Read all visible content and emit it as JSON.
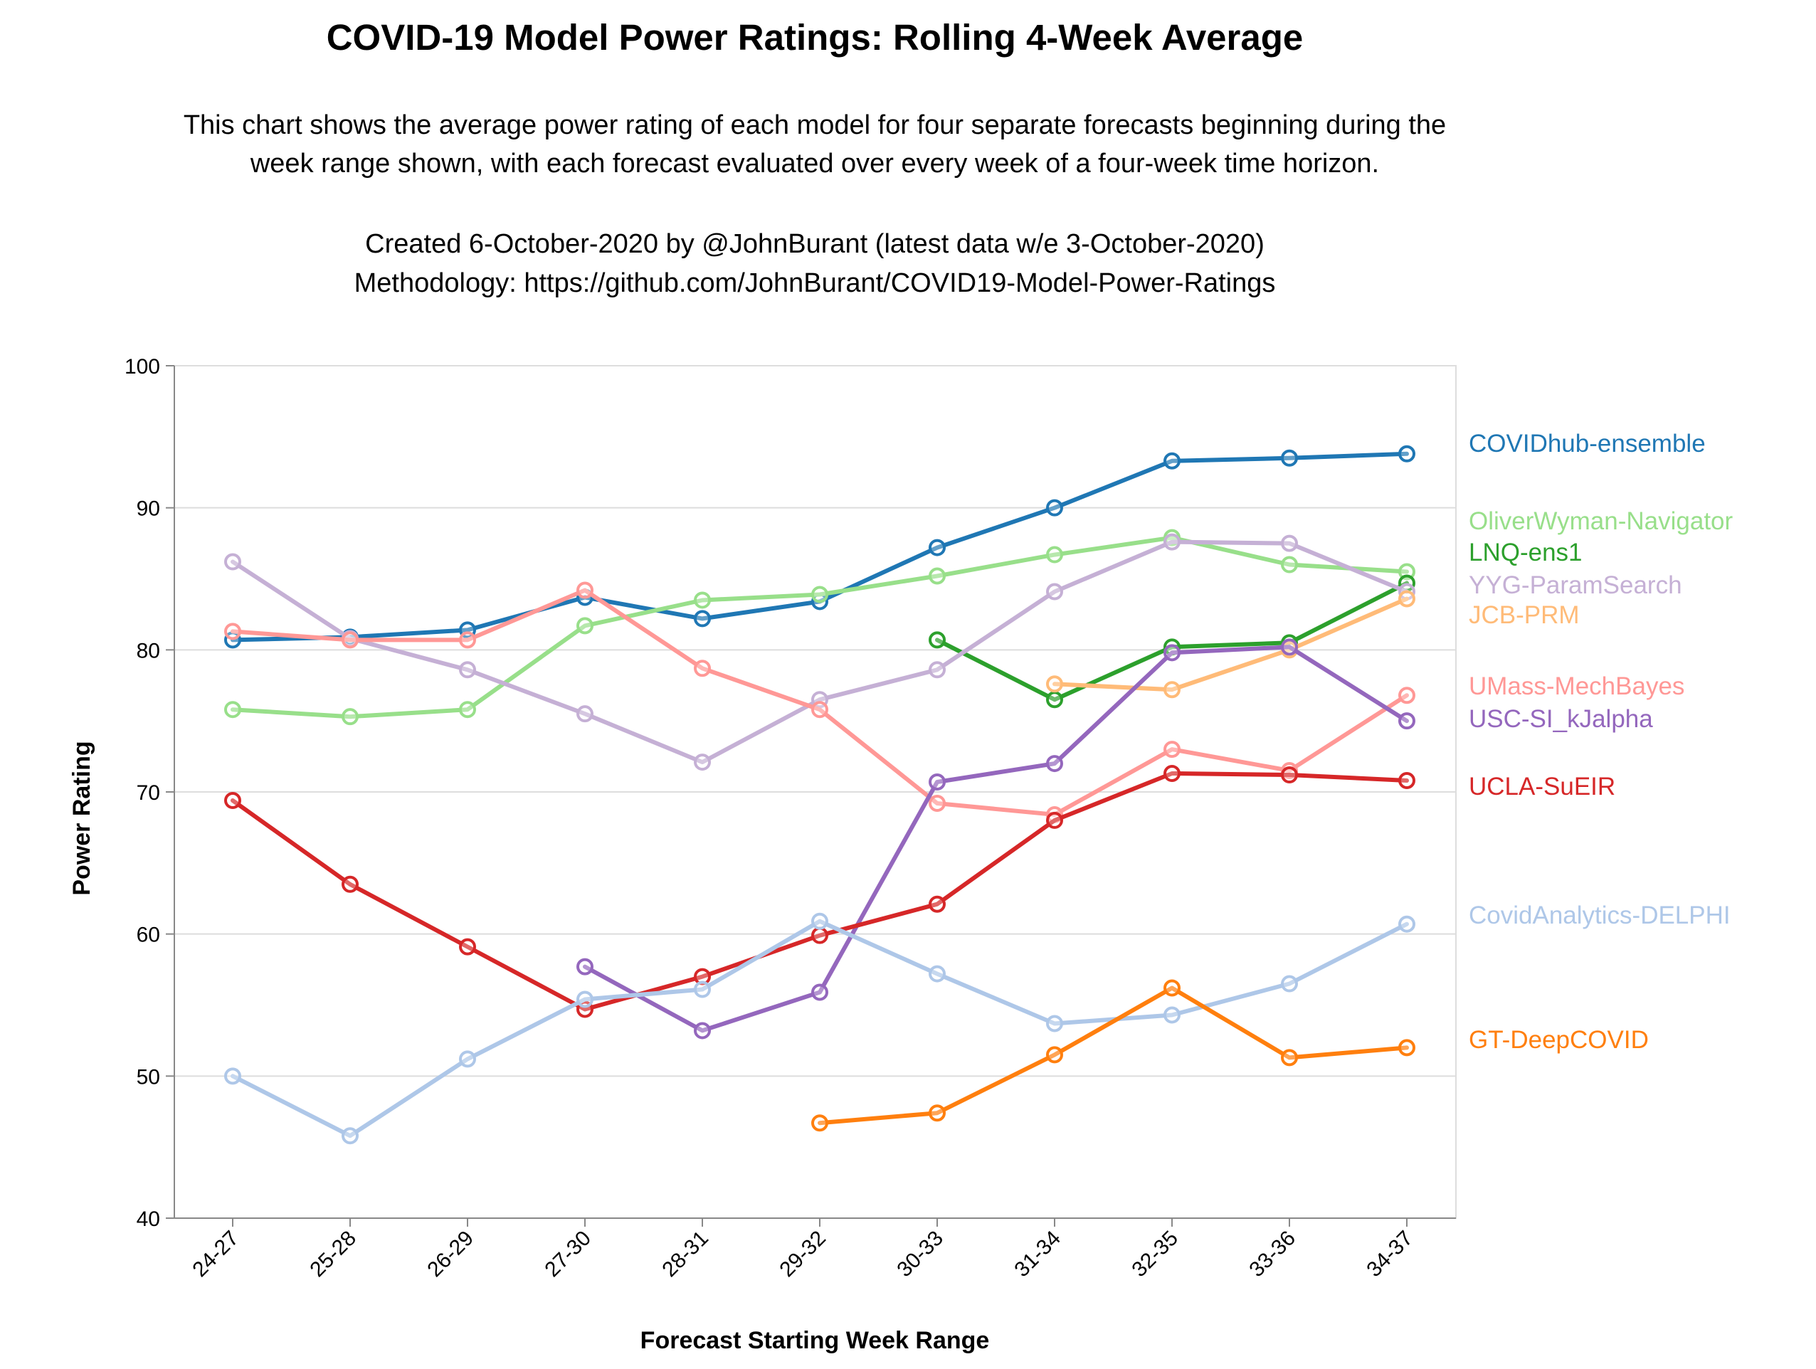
{
  "chart_data": {
    "type": "line",
    "title": "COVID-19 Model Power Ratings: Rolling 4-Week Average",
    "subtitle": [
      "This chart shows the average power rating of each model for four separate forecasts beginning during the",
      "week range shown, with each forecast evaluated over every week of a four-week time horizon.",
      "",
      "Created 6-October-2020 by @JohnBurant (latest data w/e 3-October-2020)",
      "Methodology: https://github.com/JohnBurant/COVID19-Model-Power-Ratings"
    ],
    "xlabel": "Forecast Starting Week Range",
    "ylabel": "Power Rating",
    "ylim": [
      40,
      100
    ],
    "yticks": [
      40,
      50,
      60,
      70,
      80,
      90,
      100
    ],
    "grid": true,
    "legend": "labels at right end of lines",
    "categories": [
      "24-27",
      "25-28",
      "26-29",
      "27-30",
      "28-31",
      "29-32",
      "30-33",
      "31-34",
      "32-35",
      "33-36",
      "34-37"
    ],
    "series": [
      {
        "name": "COVIDhub-ensemble",
        "color": "#1f77b4",
        "values": [
          80.7,
          80.9,
          81.4,
          83.7,
          82.2,
          83.4,
          87.2,
          90.0,
          93.3,
          93.5,
          93.8
        ]
      },
      {
        "name": "OliverWyman-Navigator",
        "color": "#98df8a",
        "values": [
          75.8,
          75.3,
          75.8,
          81.7,
          83.5,
          83.9,
          85.2,
          86.7,
          87.9,
          86.0,
          85.5
        ]
      },
      {
        "name": "LNQ-ens1",
        "color": "#2ca02c",
        "values": [
          null,
          null,
          null,
          null,
          null,
          null,
          80.7,
          76.5,
          80.2,
          80.5,
          84.7
        ]
      },
      {
        "name": "YYG-ParamSearch",
        "color": "#c5b0d5",
        "values": [
          86.2,
          80.8,
          78.6,
          75.5,
          72.1,
          76.5,
          78.6,
          84.1,
          87.6,
          87.5,
          84.1
        ]
      },
      {
        "name": "JCB-PRM",
        "color": "#ffbb78",
        "values": [
          null,
          null,
          null,
          null,
          null,
          null,
          null,
          77.6,
          77.2,
          80.0,
          83.6
        ]
      },
      {
        "name": "UMass-MechBayes",
        "color": "#ff9896",
        "values": [
          81.3,
          80.7,
          80.7,
          84.2,
          78.7,
          75.8,
          69.2,
          68.4,
          73.0,
          71.5,
          76.8
        ]
      },
      {
        "name": "USC-SI_kJalpha",
        "color": "#9467bd",
        "values": [
          null,
          null,
          null,
          57.7,
          53.2,
          55.9,
          70.7,
          72.0,
          79.8,
          80.2,
          75.0
        ]
      },
      {
        "name": "UCLA-SuEIR",
        "color": "#d62728",
        "values": [
          69.4,
          63.5,
          59.1,
          54.7,
          57.0,
          59.9,
          62.1,
          68.0,
          71.3,
          71.2,
          70.8
        ]
      },
      {
        "name": "CovidAnalytics-DELPHI",
        "color": "#aec7e8",
        "values": [
          50.0,
          45.8,
          51.2,
          55.4,
          56.1,
          60.9,
          57.2,
          53.7,
          54.3,
          56.5,
          60.7
        ]
      },
      {
        "name": "GT-DeepCOVID",
        "color": "#ff7f0e",
        "values": [
          null,
          null,
          null,
          null,
          null,
          46.7,
          47.4,
          51.5,
          56.2,
          51.3,
          52.0
        ]
      }
    ]
  }
}
